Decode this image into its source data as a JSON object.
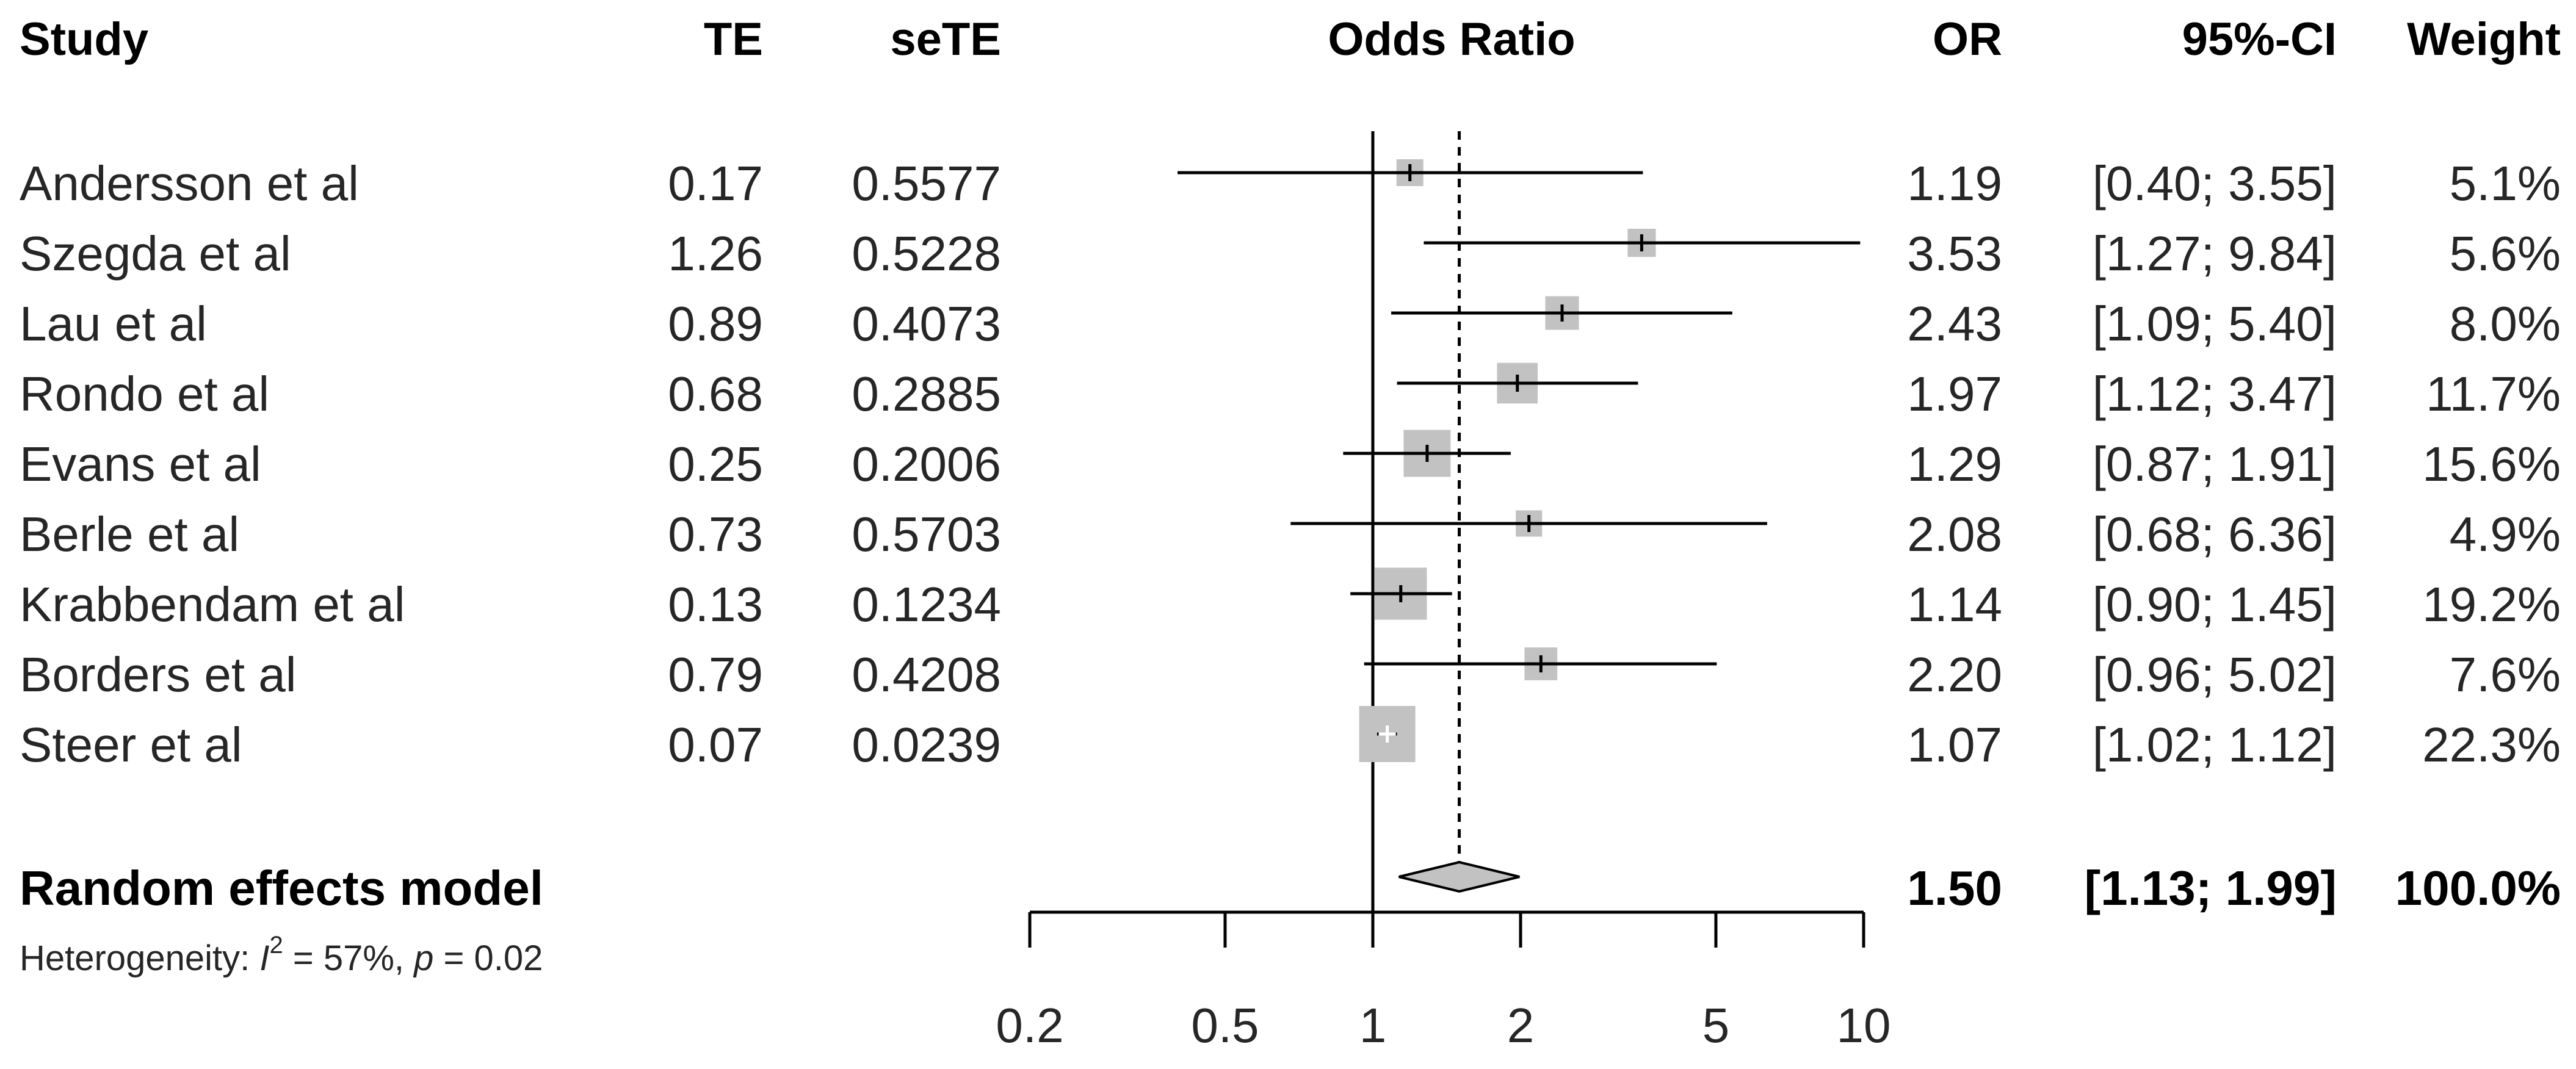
{
  "columns": {
    "study": "Study",
    "te": "TE",
    "sete": "seTE",
    "plot": "Odds Ratio",
    "or": "OR",
    "ci": "95%-CI",
    "weight": "Weight"
  },
  "studies": [
    {
      "name": "Andersson et al",
      "te": "0.17",
      "sete": "0.5577",
      "or_text": "1.19",
      "ci_text": "[0.40; 3.55]",
      "weight_text": "5.1%"
    },
    {
      "name": "Szegda et al",
      "te": "1.26",
      "sete": "0.5228",
      "or_text": "3.53",
      "ci_text": "[1.27; 9.84]",
      "weight_text": "5.6%"
    },
    {
      "name": "Lau et al",
      "te": "0.89",
      "sete": "0.4073",
      "or_text": "2.43",
      "ci_text": "[1.09; 5.40]",
      "weight_text": "8.0%"
    },
    {
      "name": "Rondo et al",
      "te": "0.68",
      "sete": "0.2885",
      "or_text": "1.97",
      "ci_text": "[1.12; 3.47]",
      "weight_text": "11.7%"
    },
    {
      "name": "Evans et al",
      "te": "0.25",
      "sete": "0.2006",
      "or_text": "1.29",
      "ci_text": "[0.87; 1.91]",
      "weight_text": "15.6%"
    },
    {
      "name": "Berle et al",
      "te": "0.73",
      "sete": "0.5703",
      "or_text": "2.08",
      "ci_text": "[0.68; 6.36]",
      "weight_text": "4.9%"
    },
    {
      "name": "Krabbendam et al",
      "te": "0.13",
      "sete": "0.1234",
      "or_text": "1.14",
      "ci_text": "[0.90; 1.45]",
      "weight_text": "19.2%"
    },
    {
      "name": "Borders et al",
      "te": "0.79",
      "sete": "0.4208",
      "or_text": "2.20",
      "ci_text": "[0.96; 5.02]",
      "weight_text": "7.6%"
    },
    {
      "name": "Steer et al",
      "te": "0.07",
      "sete": "0.0239",
      "or_text": "1.07",
      "ci_text": "[1.02; 1.12]",
      "weight_text": "22.3%"
    }
  ],
  "pooled": {
    "label": "Random effects model",
    "or_text": "1.50",
    "ci_text": "[1.13; 1.99]",
    "weight_text": "100.0%"
  },
  "heterogeneity": {
    "prefix": "Heterogeneity: ",
    "symbol": "I",
    "superscript": "2",
    "rest": " = 57%, ",
    "p_symbol": "p",
    "p_rest": " = 0.02"
  },
  "chart_data": {
    "type": "forest",
    "xlabel": "Odds Ratio",
    "x_scale": "log",
    "xlim": [
      0.2,
      10
    ],
    "ticks": [
      {
        "value": 0.2,
        "label": "0.2"
      },
      {
        "value": 0.5,
        "label": "0.5"
      },
      {
        "value": 1,
        "label": "1"
      },
      {
        "value": 2,
        "label": "2"
      },
      {
        "value": 5,
        "label": "5"
      },
      {
        "value": 10,
        "label": "10"
      }
    ],
    "null_line": 1,
    "pooled_line": 1.5,
    "series": [
      {
        "study": "Andersson et al",
        "or": 1.19,
        "lower": 0.4,
        "upper": 3.55,
        "weight": 5.1
      },
      {
        "study": "Szegda et al",
        "or": 3.53,
        "lower": 1.27,
        "upper": 9.84,
        "weight": 5.6
      },
      {
        "study": "Lau et al",
        "or": 2.43,
        "lower": 1.09,
        "upper": 5.4,
        "weight": 8.0
      },
      {
        "study": "Rondo et al",
        "or": 1.97,
        "lower": 1.12,
        "upper": 3.47,
        "weight": 11.7
      },
      {
        "study": "Evans et al",
        "or": 1.29,
        "lower": 0.87,
        "upper": 1.91,
        "weight": 15.6
      },
      {
        "study": "Berle et al",
        "or": 2.08,
        "lower": 0.68,
        "upper": 6.36,
        "weight": 4.9
      },
      {
        "study": "Krabbendam et al",
        "or": 1.14,
        "lower": 0.9,
        "upper": 1.45,
        "weight": 19.2
      },
      {
        "study": "Borders et al",
        "or": 2.2,
        "lower": 0.96,
        "upper": 5.02,
        "weight": 7.6
      },
      {
        "study": "Steer et al",
        "or": 1.07,
        "lower": 1.02,
        "upper": 1.12,
        "weight": 22.3
      }
    ],
    "pooled": {
      "or": 1.5,
      "lower": 1.13,
      "upper": 1.99
    },
    "colors": {
      "square": "#c2c2c2",
      "diamond": "#c2c2c2",
      "line": "#000000",
      "text": "#262626"
    },
    "grid": false,
    "legend": "none"
  }
}
